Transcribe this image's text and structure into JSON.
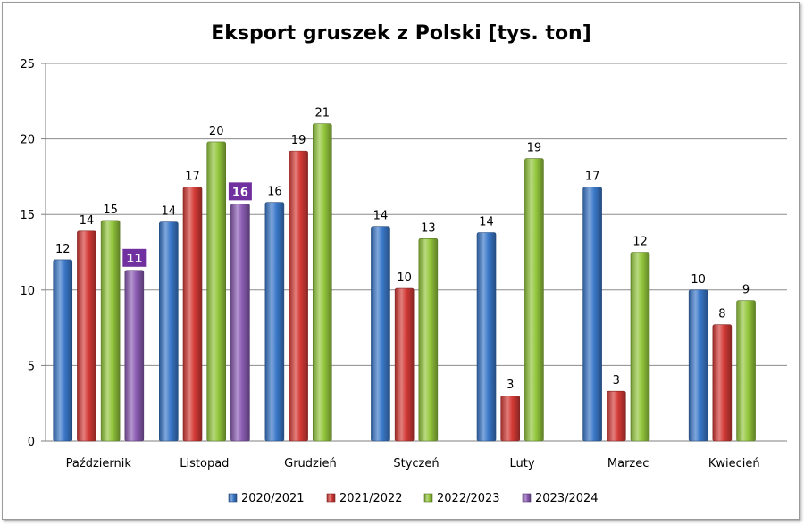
{
  "chart_data": {
    "type": "bar",
    "title": "Eksport gruszek z Polski [tys. ton]",
    "xlabel": "",
    "ylabel": "",
    "ylim": [
      0,
      25
    ],
    "yticks": [
      0,
      5,
      10,
      15,
      20,
      25
    ],
    "grid": true,
    "legend_position": "bottom",
    "categories": [
      "Październik",
      "Listopad",
      "Grudzień",
      "Styczeń",
      "Luty",
      "Marzec",
      "Kwiecień"
    ],
    "series": [
      {
        "name": "2020/2021",
        "color": "#3a78c9",
        "values": [
          12,
          14.5,
          15.8,
          14.2,
          13.8,
          16.8,
          10
        ],
        "labels": [
          "12",
          "14",
          "16",
          "14",
          "14",
          "17",
          "10"
        ]
      },
      {
        "name": "2021/2022",
        "color": "#d43a36",
        "values": [
          13.9,
          16.8,
          19.2,
          10.1,
          3.0,
          3.3,
          7.7
        ],
        "labels": [
          "14",
          "17",
          "19",
          "10",
          "3",
          "3",
          "8"
        ]
      },
      {
        "name": "2022/2023",
        "color": "#93c63c",
        "values": [
          14.6,
          19.8,
          21,
          13.4,
          18.7,
          12.5,
          9.3
        ],
        "labels": [
          "15",
          "20",
          "21",
          "13",
          "19",
          "12",
          "9"
        ]
      },
      {
        "name": "2023/2024",
        "color": "#8b5cb3",
        "values": [
          11.3,
          15.7,
          null,
          null,
          null,
          null,
          null
        ],
        "labels": [
          "11",
          "16",
          "",
          "",
          "",
          "",
          ""
        ]
      }
    ]
  }
}
